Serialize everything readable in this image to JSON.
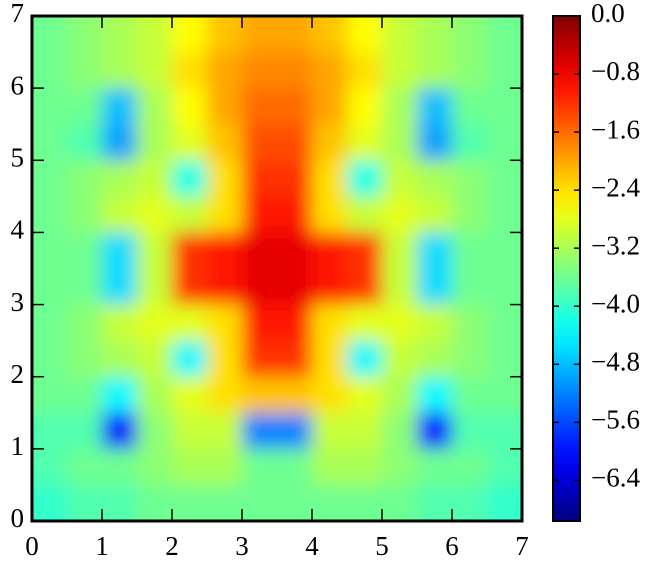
{
  "chart_data": {
    "type": "heatmap",
    "colormap": "jet",
    "x": [
      0.25,
      0.75,
      1.25,
      1.75,
      2.25,
      2.75,
      3.25,
      3.75,
      4.25,
      4.75,
      5.25,
      5.75,
      6.25,
      6.75
    ],
    "y": [
      6.75,
      6.25,
      5.75,
      5.25,
      4.75,
      4.25,
      3.75,
      3.25,
      2.75,
      2.25,
      1.75,
      1.25,
      0.75,
      0.25
    ],
    "z": [
      [
        -3.6,
        -3.4,
        -3.2,
        -3.0,
        -2.6,
        -2.2,
        -2.0,
        -2.0,
        -2.2,
        -2.6,
        -3.0,
        -3.2,
        -3.4,
        -3.6
      ],
      [
        -3.6,
        -3.4,
        -3.2,
        -3.0,
        -2.4,
        -2.0,
        -1.8,
        -1.8,
        -2.0,
        -2.4,
        -3.0,
        -3.2,
        -3.4,
        -3.6
      ],
      [
        -3.6,
        -3.6,
        -4.8,
        -3.2,
        -2.6,
        -2.0,
        -1.6,
        -1.6,
        -2.0,
        -2.6,
        -3.2,
        -4.8,
        -3.6,
        -3.6
      ],
      [
        -3.6,
        -3.8,
        -5.0,
        -3.2,
        -2.8,
        -2.2,
        -1.4,
        -1.4,
        -2.2,
        -2.8,
        -3.2,
        -5.0,
        -3.8,
        -3.6
      ],
      [
        -3.6,
        -3.4,
        -3.2,
        -3.0,
        -4.2,
        -2.4,
        -1.2,
        -1.2,
        -2.4,
        -4.2,
        -3.0,
        -3.2,
        -3.4,
        -3.6
      ],
      [
        -3.6,
        -3.4,
        -3.0,
        -2.8,
        -3.0,
        -2.4,
        -1.0,
        -1.0,
        -2.4,
        -3.0,
        -2.8,
        -3.0,
        -3.4,
        -3.6
      ],
      [
        -3.6,
        -3.6,
        -4.6,
        -3.0,
        -1.2,
        -1.0,
        -0.7,
        -0.7,
        -1.0,
        -1.2,
        -3.0,
        -4.6,
        -3.6,
        -3.6
      ],
      [
        -3.6,
        -3.6,
        -4.6,
        -3.0,
        -1.2,
        -1.0,
        -0.7,
        -0.7,
        -1.0,
        -1.2,
        -3.0,
        -4.6,
        -3.6,
        -3.6
      ],
      [
        -3.6,
        -3.4,
        -3.0,
        -2.8,
        -2.8,
        -2.4,
        -1.0,
        -1.0,
        -2.4,
        -2.8,
        -2.8,
        -3.0,
        -3.4,
        -3.6
      ],
      [
        -3.6,
        -3.4,
        -3.2,
        -3.0,
        -4.4,
        -2.4,
        -1.2,
        -1.2,
        -2.4,
        -4.4,
        -3.0,
        -3.2,
        -3.4,
        -3.6
      ],
      [
        -3.6,
        -3.6,
        -4.4,
        -3.2,
        -2.8,
        -2.4,
        -2.2,
        -2.2,
        -2.4,
        -2.8,
        -3.2,
        -4.4,
        -3.6,
        -3.6
      ],
      [
        -3.8,
        -3.8,
        -6.0,
        -3.4,
        -3.0,
        -3.0,
        -5.2,
        -5.2,
        -3.0,
        -3.0,
        -3.4,
        -6.0,
        -3.8,
        -3.8
      ],
      [
        -3.8,
        -3.6,
        -3.6,
        -3.4,
        -3.2,
        -3.2,
        -3.6,
        -3.6,
        -3.2,
        -3.2,
        -3.4,
        -3.6,
        -3.6,
        -3.8
      ],
      [
        -4.0,
        -3.8,
        -3.8,
        -3.6,
        -3.6,
        -3.6,
        -3.6,
        -3.6,
        -3.6,
        -3.6,
        -3.6,
        -3.8,
        -3.8,
        -4.0
      ]
    ],
    "xlim": [
      0,
      7
    ],
    "ylim": [
      0,
      7
    ],
    "xticks": [
      0,
      1,
      2,
      3,
      4,
      5,
      6,
      7
    ],
    "yticks": [
      0,
      1,
      2,
      3,
      4,
      5,
      6,
      7
    ],
    "clim": [
      -6.96,
      0
    ],
    "cticks": [
      {
        "value": 0,
        "label": "0.0"
      },
      {
        "value": -0.8,
        "label": "−0.8"
      },
      {
        "value": -1.6,
        "label": "−1.6"
      },
      {
        "value": -2.4,
        "label": "−2.4"
      },
      {
        "value": -3.2,
        "label": "−3.2"
      },
      {
        "value": -4.0,
        "label": "−4.0"
      },
      {
        "value": -4.8,
        "label": "−4.8"
      },
      {
        "value": -5.6,
        "label": "−5.6"
      },
      {
        "value": -6.4,
        "label": "−6.4"
      }
    ]
  }
}
